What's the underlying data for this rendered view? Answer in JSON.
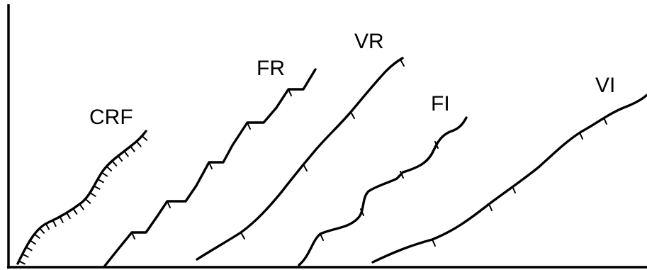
{
  "diagram": {
    "schedules": [
      {
        "id": "crf",
        "label": "CRF"
      },
      {
        "id": "fr",
        "label": "FR"
      },
      {
        "id": "vr",
        "label": "VR"
      },
      {
        "id": "fi",
        "label": "FI"
      },
      {
        "id": "vi",
        "label": "VI"
      }
    ]
  },
  "colors": {
    "ink": "#000000",
    "background": "#ffffff"
  }
}
